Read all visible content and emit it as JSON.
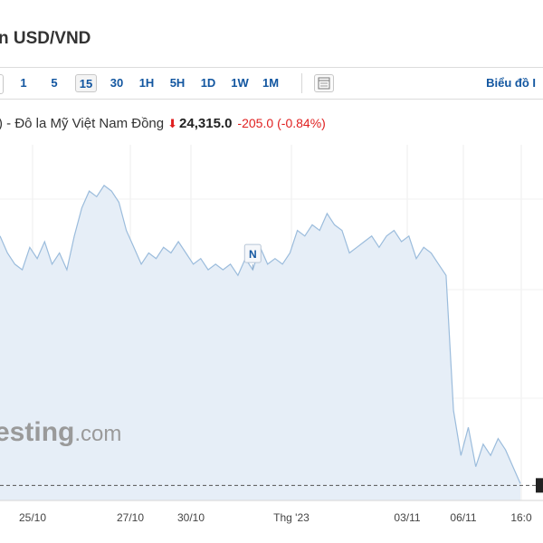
{
  "header": {
    "title": "n USD/VND"
  },
  "toolbar": {
    "intervals": [
      "1",
      "5",
      "15",
      "30",
      "1H",
      "5H",
      "1D",
      "1W",
      "1M"
    ],
    "active_interval": "15",
    "chart_link": "Biểu đồ I"
  },
  "quote": {
    "name": ") - Đô la Mỹ Việt Nam Đồng",
    "price": "24,315.0",
    "change": "-205.0",
    "change_pct": "(-0.84%)",
    "direction_icon": "arrow-down-icon"
  },
  "watermark": {
    "main": "esting",
    "suffix": ".com"
  },
  "colors": {
    "line": "#9bbcdc",
    "area": "#e6eef7",
    "down": "#e02020",
    "link": "#1256a0"
  },
  "chart_data": {
    "type": "area",
    "title": "",
    "xlabel": "",
    "ylabel": "",
    "x_ticks": [
      "25/10",
      "27/10",
      "30/10",
      "Thg '23",
      "03/11",
      "06/11",
      "16:0"
    ],
    "annotation": {
      "label": "N",
      "x": 34
    },
    "last_value": 24315.0,
    "ylim": [
      24300,
      24600
    ],
    "x": [
      0,
      1,
      2,
      3,
      4,
      5,
      6,
      7,
      8,
      9,
      10,
      11,
      12,
      13,
      14,
      15,
      16,
      17,
      18,
      19,
      20,
      21,
      22,
      23,
      24,
      25,
      26,
      27,
      28,
      29,
      30,
      31,
      32,
      33,
      34,
      35,
      36,
      37,
      38,
      39,
      40,
      41,
      42,
      43,
      44,
      45,
      46,
      47,
      48,
      49,
      50,
      51,
      52,
      53,
      54,
      55,
      56,
      57,
      58,
      59,
      60,
      61,
      62,
      63,
      64,
      65,
      66,
      67,
      68,
      69,
      70
    ],
    "values": [
      24535,
      24520,
      24510,
      24505,
      24525,
      24515,
      24530,
      24510,
      24520,
      24505,
      24535,
      24560,
      24575,
      24570,
      24580,
      24575,
      24565,
      24540,
      24525,
      24510,
      24520,
      24515,
      24525,
      24520,
      24530,
      24520,
      24510,
      24515,
      24505,
      24510,
      24505,
      24510,
      24500,
      24515,
      24505,
      24525,
      24510,
      24515,
      24510,
      24520,
      24540,
      24535,
      24545,
      24540,
      24555,
      24545,
      24540,
      24520,
      24525,
      24530,
      24535,
      24525,
      24535,
      24540,
      24530,
      24535,
      24515,
      24525,
      24520,
      24510,
      24500,
      24380,
      24340,
      24365,
      24330,
      24350,
      24340,
      24355,
      24345,
      24330,
      24315
    ]
  }
}
